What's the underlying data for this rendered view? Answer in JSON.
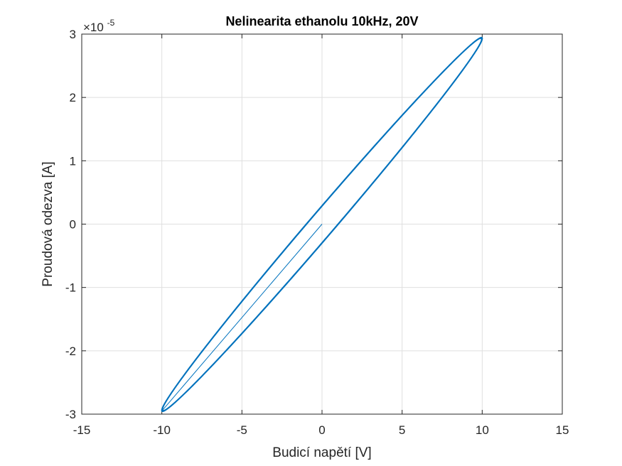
{
  "chart_data": {
    "type": "line",
    "title": "Nelinearita ethanolu 10kHz, 20V",
    "xlabel": "Budicí napětí [V]",
    "ylabel": "Proudová odezva [A]",
    "xlim": [
      -15,
      15
    ],
    "ylim": [
      -3e-05,
      3e-05
    ],
    "y_exponent_label": "×10",
    "y_exponent": "-5",
    "x_ticks": [
      -15,
      -10,
      -5,
      0,
      5,
      10,
      15
    ],
    "x_tick_labels": [
      "-15",
      "-10",
      "-5",
      "0",
      "5",
      "10",
      "15"
    ],
    "y_ticks": [
      -3e-05,
      -2e-05,
      -1e-05,
      0,
      1e-05,
      2e-05,
      3e-05
    ],
    "y_tick_labels": [
      "-3",
      "-2",
      "-1",
      "0",
      "1",
      "2",
      "3"
    ],
    "grid": true,
    "series": [
      {
        "color": "#0072BD",
        "description": "hysteresis loop (sinusoidal drive)",
        "amplitude_x": 10,
        "amplitude_y": 2.95e-05,
        "phase_lag_rad": 0.1,
        "x_offset": 0,
        "y_offset": -5e-08,
        "transient_start": [
          0,
          0
        ],
        "transient_end": [
          -10,
          -2.95e-05
        ]
      }
    ]
  },
  "colors": {
    "series": "#0072BD",
    "grid": "#dfdfdf",
    "axis": "#262626"
  }
}
